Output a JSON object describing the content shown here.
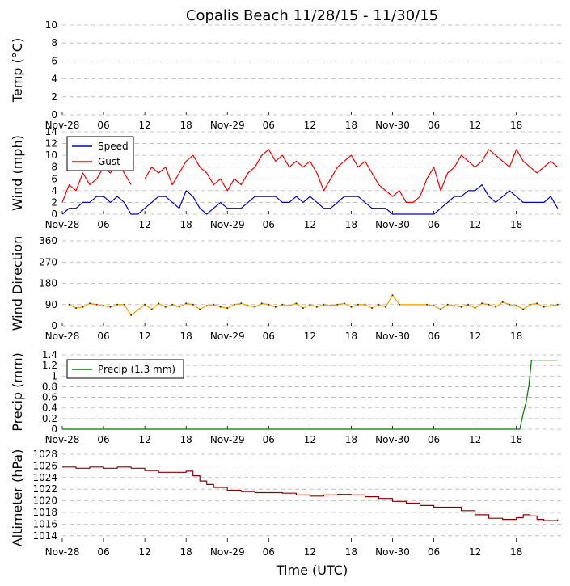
{
  "chart_data": {
    "type": "line",
    "title": "Copalis Beach 11/28/15 - 11/30/15",
    "xlabel": "Time (UTC)",
    "x_unit": "hours since 2015-11-28 00:00 UTC",
    "xlim": [
      0,
      72.5
    ],
    "x_ticks": [
      {
        "hour": 0,
        "label": "Nov-28"
      },
      {
        "hour": 6,
        "label": "06"
      },
      {
        "hour": 12,
        "label": "12"
      },
      {
        "hour": 18,
        "label": "18"
      },
      {
        "hour": 24,
        "label": "Nov-29"
      },
      {
        "hour": 30,
        "label": "06"
      },
      {
        "hour": 36,
        "label": "12"
      },
      {
        "hour": 42,
        "label": "18"
      },
      {
        "hour": 48,
        "label": "Nov-30"
      },
      {
        "hour": 54,
        "label": "06"
      },
      {
        "hour": 60,
        "label": "12"
      },
      {
        "hour": 66,
        "label": "18"
      }
    ],
    "panels": [
      {
        "id": "temp",
        "ylabel": "Temp (°C)",
        "ylim": [
          0,
          10
        ],
        "y_ticks": [
          0,
          2,
          4,
          6,
          8,
          10
        ],
        "series": []
      },
      {
        "id": "wind",
        "ylabel": "Wind (mph)",
        "ylim": [
          0,
          14
        ],
        "y_ticks": [
          0,
          2,
          4,
          6,
          8,
          10,
          12,
          14
        ],
        "legend": "top-left",
        "series": [
          {
            "name": "Speed",
            "color": "#0000cc",
            "x": [
              0,
              1,
              2,
              3,
              4,
              5,
              6,
              7,
              8,
              9,
              10,
              11,
              12,
              13,
              14,
              15,
              16,
              17,
              18,
              19,
              20,
              21,
              22,
              23,
              24,
              25,
              26,
              27,
              28,
              29,
              30,
              31,
              32,
              33,
              34,
              35,
              36,
              37,
              38,
              39,
              40,
              41,
              42,
              43,
              44,
              45,
              46,
              47,
              48,
              49,
              50,
              51,
              52,
              53,
              54,
              55,
              56,
              57,
              58,
              59,
              60,
              61,
              62,
              63,
              64,
              65,
              66,
              67,
              68,
              69,
              70,
              71,
              72
            ],
            "values": [
              0,
              1,
              1,
              2,
              2,
              3,
              3,
              2,
              3,
              2,
              0,
              0,
              1,
              2,
              3,
              3,
              2,
              1,
              4,
              3,
              1,
              0,
              1,
              2,
              1,
              1,
              1,
              2,
              3,
              3,
              3,
              3,
              2,
              2,
              3,
              2,
              3,
              2,
              1,
              1,
              2,
              3,
              3,
              3,
              2,
              1,
              1,
              1,
              0,
              0,
              0,
              0,
              0,
              0,
              0,
              1,
              2,
              3,
              3,
              4,
              4,
              5,
              3,
              2,
              3,
              4,
              3,
              2,
              2,
              2,
              2,
              3,
              1
            ]
          },
          {
            "name": "Gust",
            "color": "#ee0000",
            "x": [
              0,
              1,
              2,
              3,
              4,
              5,
              6,
              7,
              8,
              9,
              10,
              11,
              12,
              13,
              14,
              15,
              16,
              17,
              18,
              19,
              20,
              21,
              22,
              23,
              24,
              25,
              26,
              27,
              28,
              29,
              30,
              31,
              32,
              33,
              34,
              35,
              36,
              37,
              38,
              39,
              40,
              41,
              42,
              43,
              44,
              45,
              46,
              47,
              48,
              49,
              50,
              51,
              52,
              53,
              54,
              55,
              56,
              57,
              58,
              59,
              60,
              61,
              62,
              63,
              64,
              65,
              66,
              67,
              68,
              69,
              70,
              71,
              72
            ],
            "values": [
              2,
              5,
              4,
              7,
              5,
              6,
              8,
              7,
              9,
              7,
              5,
              null,
              6,
              8,
              7,
              8,
              5,
              7,
              9,
              10,
              8,
              7,
              5,
              6,
              4,
              6,
              5,
              7,
              8,
              10,
              11,
              9,
              10,
              8,
              9,
              8,
              9,
              7,
              4,
              6,
              8,
              9,
              10,
              8,
              9,
              7,
              5,
              4,
              3,
              4,
              2,
              2,
              3,
              6,
              8,
              4,
              7,
              8,
              10,
              9,
              8,
              9,
              11,
              10,
              9,
              8,
              11,
              9,
              8,
              7,
              8,
              9,
              8
            ]
          }
        ]
      },
      {
        "id": "dir",
        "ylabel": "Wind Direction",
        "ylim": [
          0,
          360
        ],
        "y_ticks": [
          0,
          90,
          180,
          270,
          360
        ],
        "series": [
          {
            "name": "Direction",
            "color": "#ffa500",
            "x": [
              1,
              2,
              3,
              4,
              5,
              6,
              7,
              8,
              9,
              10,
              12,
              13,
              14,
              15,
              16,
              17,
              18,
              19,
              20,
              21,
              22,
              23,
              24,
              25,
              26,
              27,
              28,
              29,
              30,
              31,
              32,
              33,
              34,
              35,
              36,
              37,
              38,
              39,
              40,
              41,
              42,
              43,
              44,
              45,
              46,
              47,
              48,
              49,
              53,
              54,
              55,
              56,
              57,
              58,
              59,
              60,
              61,
              62,
              63,
              64,
              65,
              66,
              67,
              68,
              69,
              70,
              71,
              72
            ],
            "values": [
              90,
              75,
              80,
              95,
              90,
              85,
              80,
              90,
              90,
              45,
              90,
              70,
              95,
              80,
              90,
              80,
              95,
              90,
              70,
              85,
              90,
              80,
              75,
              90,
              95,
              85,
              80,
              95,
              90,
              80,
              90,
              85,
              95,
              75,
              90,
              80,
              90,
              85,
              90,
              95,
              80,
              90,
              90,
              75,
              90,
              80,
              130,
              90,
              90,
              85,
              70,
              90,
              85,
              80,
              90,
              75,
              95,
              90,
              80,
              100,
              90,
              85,
              70,
              90,
              95,
              80,
              85,
              90
            ]
          }
        ]
      },
      {
        "id": "precip",
        "ylabel": "Precip (mm)",
        "ylim": [
          0,
          1.4
        ],
        "y_ticks": [
          0,
          0.2,
          0.4,
          0.6,
          0.8,
          1.0,
          1.2,
          1.4
        ],
        "legend": "top-left",
        "series": [
          {
            "name": "Precip (1.3 mm)",
            "color": "#007700",
            "x": [
              0,
              66.5,
              67,
              67.4,
              67.8,
              68.2,
              68.6,
              69,
              72
            ],
            "values": [
              0,
              0,
              0.3,
              0.5,
              0.8,
              1.3,
              1.3,
              1.3,
              1.3
            ]
          }
        ]
      },
      {
        "id": "alt",
        "ylabel": "Altimeter (hPa)",
        "ylim": [
          1013,
          1028
        ],
        "y_ticks": [
          1014,
          1016,
          1018,
          1020,
          1022,
          1024,
          1026,
          1028
        ],
        "series": [
          {
            "name": "Altimeter",
            "color": "#880000",
            "x": [
              0,
              2,
              4,
              6,
              8,
              10,
              12,
              14,
              16,
              18,
              19,
              20,
              21,
              22,
              24,
              26,
              28,
              30,
              32,
              34,
              36,
              38,
              40,
              42,
              44,
              46,
              48,
              50,
              52,
              54,
              56,
              58,
              60,
              62,
              64,
              66,
              67,
              68,
              69,
              70,
              72
            ],
            "values": [
              1025.8,
              1025.6,
              1025.8,
              1025.6,
              1025.8,
              1025.6,
              1025.2,
              1024.9,
              1024.9,
              1025.1,
              1024.3,
              1023.4,
              1022.8,
              1022.3,
              1021.8,
              1021.6,
              1021.4,
              1021.4,
              1021.3,
              1021.0,
              1020.8,
              1021.0,
              1021.1,
              1021.0,
              1020.7,
              1020.4,
              1019.9,
              1019.6,
              1019.2,
              1018.9,
              1018.9,
              1018.3,
              1017.6,
              1017.0,
              1016.8,
              1017.1,
              1017.6,
              1017.4,
              1016.8,
              1016.6,
              1016.8
            ]
          }
        ]
      }
    ]
  }
}
